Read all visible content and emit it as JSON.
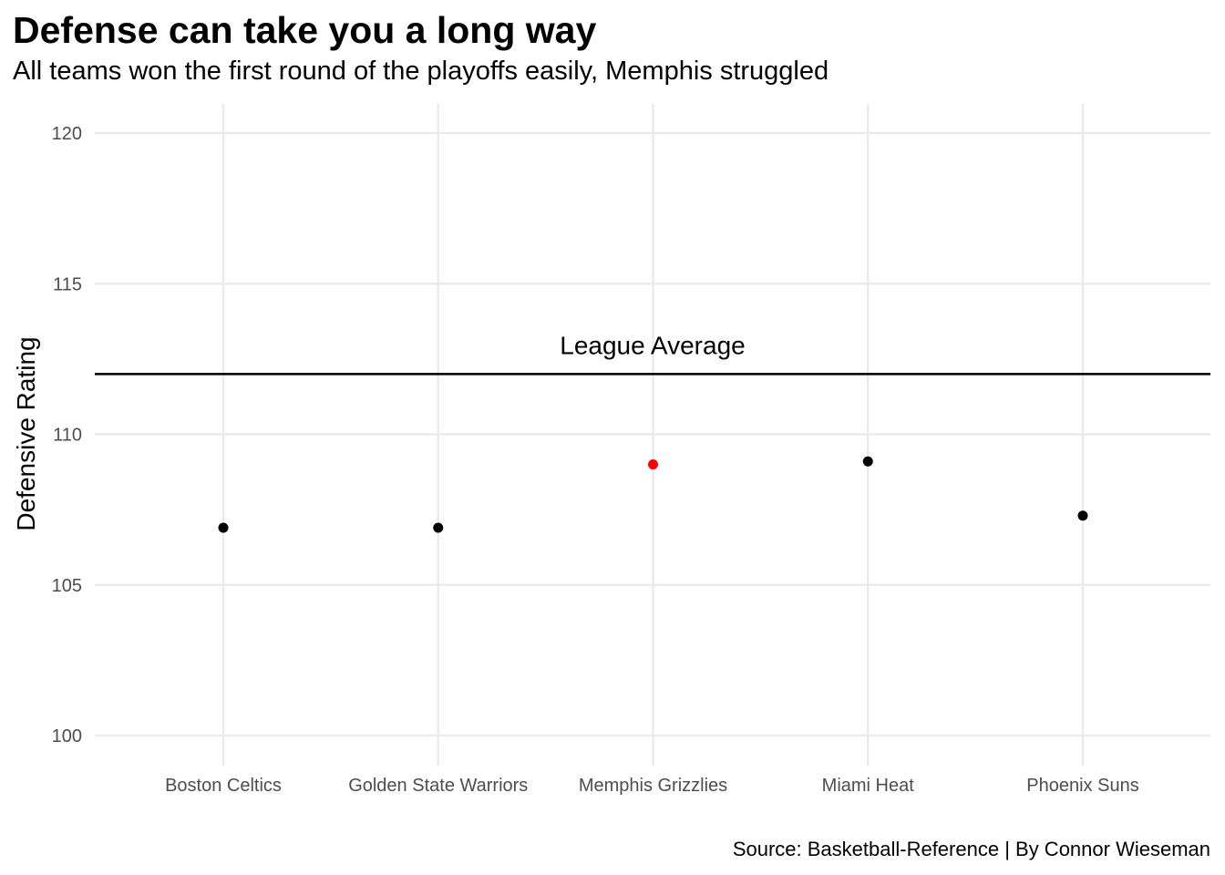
{
  "chart_data": {
    "type": "scatter",
    "title": "Defense can take you a long way",
    "subtitle": "All teams won the first round of the playoffs easily, Memphis struggled",
    "caption": "Source: Basketball-Reference | By Connor Wieseman",
    "xlabel": "",
    "ylabel": "Defensive Rating",
    "ylim": [
      99,
      121
    ],
    "yticks": [
      100,
      105,
      110,
      115,
      120
    ],
    "categories": [
      "Boston Celtics",
      "Golden State Warriors",
      "Memphis Grizzlies",
      "Miami Heat",
      "Phoenix Suns"
    ],
    "values": [
      106.9,
      106.9,
      109.0,
      109.1,
      107.3
    ],
    "highlight": "Memphis Grizzlies",
    "reference_line": {
      "value": 112.0,
      "label": "League Average"
    },
    "grid": true,
    "colors": {
      "point": "#000000",
      "highlight": "#ff0000",
      "grid": "#ebebeb",
      "reference_line": "#000000"
    }
  }
}
